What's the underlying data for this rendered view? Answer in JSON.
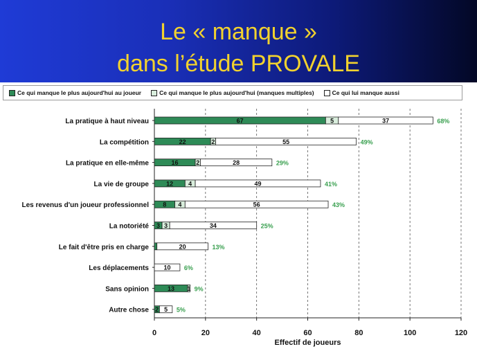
{
  "title": {
    "line1": "Le « manque »",
    "line2": "dans l’étude PROVALE"
  },
  "colors": {
    "title": "#f2d22e",
    "series1": "#2e8b57",
    "series2": "#d9eedd",
    "series3": "#ffffff",
    "percent": "#3aa050"
  },
  "chart_data": {
    "type": "bar",
    "orientation": "horizontal",
    "stacked": true,
    "xlabel": "Effectif de joueurs",
    "ylabel": "",
    "xlim": [
      0,
      120
    ],
    "xticks": [
      "0",
      "20",
      "40",
      "60",
      "80",
      "100",
      "120"
    ],
    "grid": "vertical dashed",
    "legend_position": "top",
    "categories": [
      "La pratique à haut niveau",
      "La compétition",
      "La pratique en elle-même",
      "La vie de groupe",
      "Les revenus d'un joueur professionnel",
      "La notoriété",
      "Le fait d'être pris en charge",
      "Les déplacements",
      "Sans opinion",
      "Autre chose"
    ],
    "series": [
      {
        "name": "Ce qui manque le plus aujourd'hui au joueur",
        "values": [
          67,
          22,
          16,
          12,
          8,
          3,
          1,
          0,
          13,
          2
        ],
        "labels": [
          "67",
          "22",
          "16",
          "12",
          "8",
          "3",
          "",
          "",
          "13",
          "2"
        ]
      },
      {
        "name": "Ce qui manque le plus aujourd'hui (manques multiples)",
        "values": [
          5,
          2,
          2,
          4,
          4,
          3,
          0,
          0,
          1,
          0
        ],
        "labels": [
          "5",
          "2",
          "2",
          "4",
          "4",
          "3",
          "",
          "",
          "1",
          ""
        ]
      },
      {
        "name": "Ce qui lui manque aussi",
        "values": [
          37,
          55,
          28,
          49,
          56,
          34,
          20,
          10,
          0,
          5
        ],
        "labels": [
          "37",
          "55",
          "28",
          "49",
          "56",
          "34",
          "20",
          "10",
          "",
          "5"
        ]
      }
    ],
    "percentages": [
      "68%",
      "49%",
      "29%",
      "41%",
      "43%",
      "25%",
      "13%",
      "6%",
      "9%",
      "5%"
    ]
  }
}
